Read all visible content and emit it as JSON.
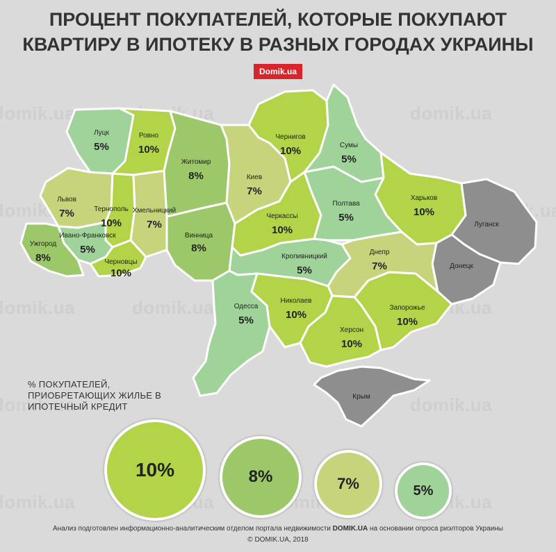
{
  "title_line1": "ПРОЦЕНТ ПОКУПАТЕЛЕЙ, КОТОРЫЕ ПОКУПАЮТ",
  "title_line2": "КВАРТИРУ В ИПОТЕКУ В РАЗНЫХ ГОРОДАХ УКРАИНЫ",
  "badge": "Domik.ua",
  "watermark": "domik.ua",
  "colors": {
    "p10": "#b3d448",
    "p8": "#9cc86a",
    "p7": "#c8d47c",
    "p5": "#9fd39a",
    "none": "#8e8e8e",
    "background": "#dadada",
    "badge": "#d7262b"
  },
  "regions": {
    "lutsk": {
      "name": "Луцк",
      "value": "5%"
    },
    "rovno": {
      "name": "Ровно",
      "value": "10%"
    },
    "zhitomir": {
      "name": "Житомир",
      "value": "8%"
    },
    "kiev": {
      "name": "Киев",
      "value": "7%"
    },
    "chernigov": {
      "name": "Чернигов",
      "value": "10%"
    },
    "sumy": {
      "name": "Сумы",
      "value": "5%"
    },
    "kharkov": {
      "name": "Харьков",
      "value": "10%"
    },
    "lugansk": {
      "name": "Луганск",
      "value": ""
    },
    "donetsk": {
      "name": "Донецк",
      "value": ""
    },
    "lvov": {
      "name": "Львов",
      "value": "7%"
    },
    "ternopol": {
      "name": "Тернополь",
      "value": "10%"
    },
    "khmelnitsky": {
      "name": "Хмельницкий",
      "value": "7%"
    },
    "vinnitsa": {
      "name": "Винница",
      "value": "8%"
    },
    "cherkassy": {
      "name": "Черкассы",
      "value": "10%"
    },
    "poltava": {
      "name": "Полтава",
      "value": "5%"
    },
    "uzhgorod": {
      "name": "Ужгород",
      "value": "8%"
    },
    "ivano": {
      "name": "Ивано-Франковск",
      "value": "5%"
    },
    "chernovtsy": {
      "name": "Черновцы",
      "value": "10%"
    },
    "kropivnitsky": {
      "name": "Кропивницкий",
      "value": "5%"
    },
    "dnepr": {
      "name": "Днепр",
      "value": "7%"
    },
    "odessa": {
      "name": "Одесса",
      "value": "5%"
    },
    "nikolaev": {
      "name": "Николаев",
      "value": "10%"
    },
    "zaporozhye": {
      "name": "Запорожье",
      "value": "10%"
    },
    "kherson": {
      "name": "Херсон",
      "value": "10%"
    },
    "krym": {
      "name": "Крым",
      "value": ""
    }
  },
  "legend": {
    "title": "% ПОКУПАТЕЛЕЙ, ПРИОБРЕТАЮЩИХ ЖИЛЬЕ В ИПОТЕЧНЫЙ КРЕДИТ",
    "items": [
      {
        "label": "10%"
      },
      {
        "label": "8%"
      },
      {
        "label": "7%"
      },
      {
        "label": "5%"
      }
    ]
  },
  "footer": {
    "pre": "Анализ подготовлен информационно-аналитическим отделом портала недвижимости ",
    "brand": "DOMIK.UA",
    "post": " на основании опроса риэлторов Украины",
    "copyright": "© DOMIK.UA, 2018"
  }
}
